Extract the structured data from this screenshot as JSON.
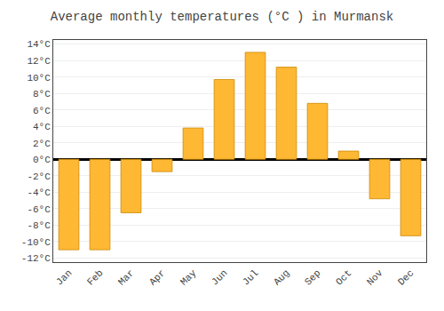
{
  "chart_data": {
    "type": "bar",
    "title": "Average monthly temperatures (°C ) in Murmansk",
    "categories": [
      "Jan",
      "Feb",
      "Mar",
      "Apr",
      "May",
      "Jun",
      "Jul",
      "Aug",
      "Sep",
      "Oct",
      "Nov",
      "Dec"
    ],
    "values": [
      -11,
      -11,
      -6.5,
      -1.5,
      3.8,
      9.7,
      13,
      11.2,
      6.8,
      1,
      -4.8,
      -9.3
    ],
    "color": "#FFB833",
    "ylim": [
      -12.5,
      14.5
    ],
    "yticks": [
      {
        "value": -12,
        "label": "-12°C"
      },
      {
        "value": -10,
        "label": "-10°C"
      },
      {
        "value": -8,
        "label": "-8°C"
      },
      {
        "value": -6,
        "label": "-6°C"
      },
      {
        "value": -4,
        "label": "-4°C"
      },
      {
        "value": -2,
        "label": "-2°C"
      },
      {
        "value": 0,
        "label": "0°C"
      },
      {
        "value": 2,
        "label": "2°C"
      },
      {
        "value": 4,
        "label": "4°C"
      },
      {
        "value": 6,
        "label": "6°C"
      },
      {
        "value": 8,
        "label": "8°C"
      },
      {
        "value": 10,
        "label": "10°C"
      },
      {
        "value": 12,
        "label": "12°C"
      },
      {
        "value": 14,
        "label": "14°C"
      }
    ],
    "grid": true
  }
}
